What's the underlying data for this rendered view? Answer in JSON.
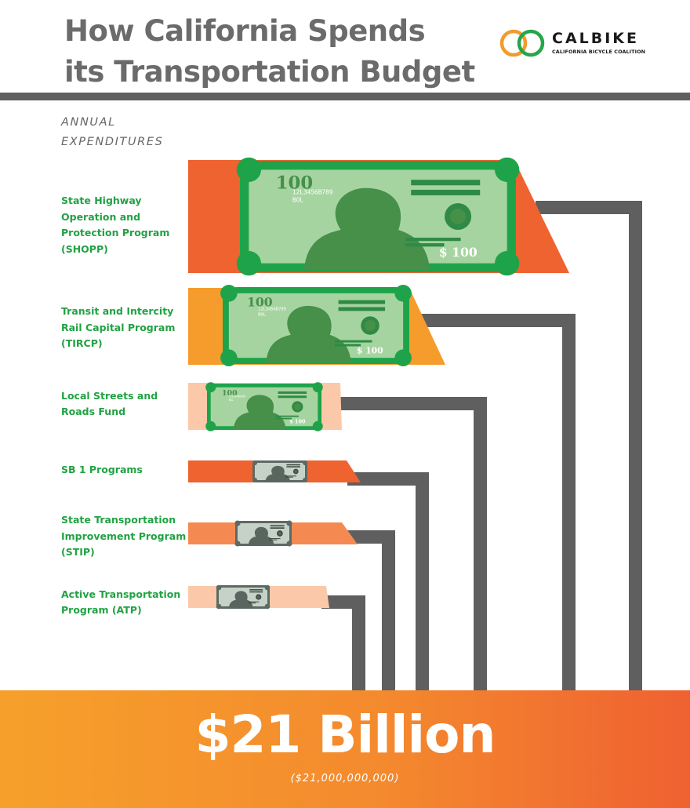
{
  "title_line1": "How California Spends",
  "title_line2": "its Transportation Budget",
  "logo": {
    "name": "CALBIKE",
    "tagline": "CALIFORNIA BICYCLE COALITION",
    "ring_colors": [
      "#f39a2e",
      "#26a64a"
    ]
  },
  "axis_caption": [
    "ANNUAL",
    "EXPENDITURES"
  ],
  "total": {
    "headline": "$21 Billion",
    "detail": "($21,000,000,000)"
  },
  "colors": {
    "green_label": "#21a243",
    "connector": "#5f5f5f",
    "bill_border": "#1fa34a",
    "bill_face": "#a6d4a0",
    "portrait": "#46904a"
  },
  "bill_text": {
    "large": "100",
    "serial": "12L3456B789",
    "sub": "BOL",
    "value": "$ 100"
  },
  "chart_data": {
    "type": "bar",
    "categories": [
      "State Highway Operation and Protection Program (SHOPP)",
      "Transit and Intercity Rail Capital Program (TIRCP)",
      "Local Streets and Roads Fund",
      "SB 1 Programs",
      "State Transportation Improvement Program (STIP)",
      "Active Transportation Program (ATP)"
    ],
    "labels": [
      "State Highway\nOperation and\nProtection Program\n(SHOPP)",
      "Transit and Intercity\nRail Capital Program\n(TIRCP)",
      "Local Streets and\nRoads Fund",
      "SB 1 Programs",
      "State Transportation\nImprovement Program\n(STIP)",
      "Active Transportation\nProgram (ATP)"
    ],
    "values": [
      100,
      68,
      40,
      44,
      45,
      36
    ],
    "band_colors": [
      "#ef6330",
      "#f59c2c",
      "#fbc9a9",
      "#ef6330",
      "#f48a52",
      "#fbc9a9"
    ],
    "bill_kinds": [
      "green",
      "green",
      "green",
      "gray",
      "gray",
      "gray"
    ],
    "orientation": "horizontal",
    "ylabel": "ANNUAL EXPENDITURES",
    "total": "$21 Billion"
  }
}
